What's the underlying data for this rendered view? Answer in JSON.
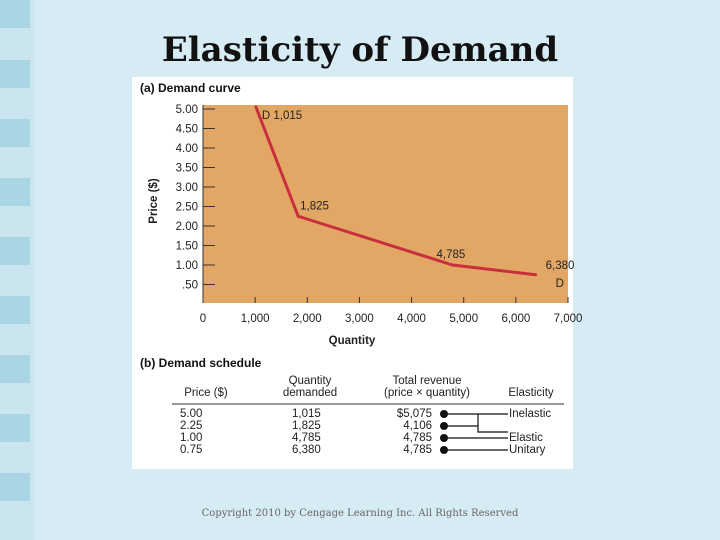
{
  "slide": {
    "title": "Elasticity of Demand",
    "copyright": "Copyright 2010 by Cengage Learning Inc. All Rights Reserved",
    "colors": {
      "background": "#d6ebf4",
      "tile": "#a9d5e5",
      "plot_bg": "#e2a765",
      "curve": "#c72f3f"
    }
  },
  "chart_data": {
    "type": "line",
    "panel_a_label": "(a) Demand curve",
    "xlabel": "Quantity",
    "ylabel": "Price ($)",
    "xlim": [
      0,
      7000
    ],
    "ylim": [
      0,
      5.0
    ],
    "x_ticks": [
      "0",
      "1,000",
      "2,000",
      "3,000",
      "4,000",
      "5,000",
      "6,000",
      "7,000"
    ],
    "y_ticks": [
      "5.00",
      "4.50",
      "4.00",
      "3.50",
      "3.00",
      "2.50",
      "2.00",
      "1.50",
      "1.00",
      ".50"
    ],
    "series": [
      {
        "name": "D",
        "x": [
          1015,
          1825,
          4785,
          6380
        ],
        "y": [
          5.0,
          2.25,
          1.0,
          0.75
        ]
      }
    ],
    "point_labels": [
      "D  1,015",
      "1,825",
      "4,785",
      "6,380"
    ],
    "end_label": "D"
  },
  "schedule": {
    "label": "(b) Demand schedule",
    "headers": {
      "price": "Price ($)",
      "quantity_1": "Quantity",
      "quantity_2": "demanded",
      "revenue_1": "Total revenue",
      "revenue_2": "(price × quantity)",
      "elasticity": "Elasticity"
    },
    "rows": [
      {
        "price": "5.00",
        "quantity": "1,015",
        "revenue": "$5,075"
      },
      {
        "price": "2.25",
        "quantity": "1,825",
        "revenue": "4,106"
      },
      {
        "price": "1.00",
        "quantity": "4,785",
        "revenue": "4,785"
      },
      {
        "price": "0.75",
        "quantity": "6,380",
        "revenue": "4,785"
      }
    ],
    "elasticity_labels": [
      "Inelastic",
      "Elastic",
      "Unitary"
    ]
  }
}
